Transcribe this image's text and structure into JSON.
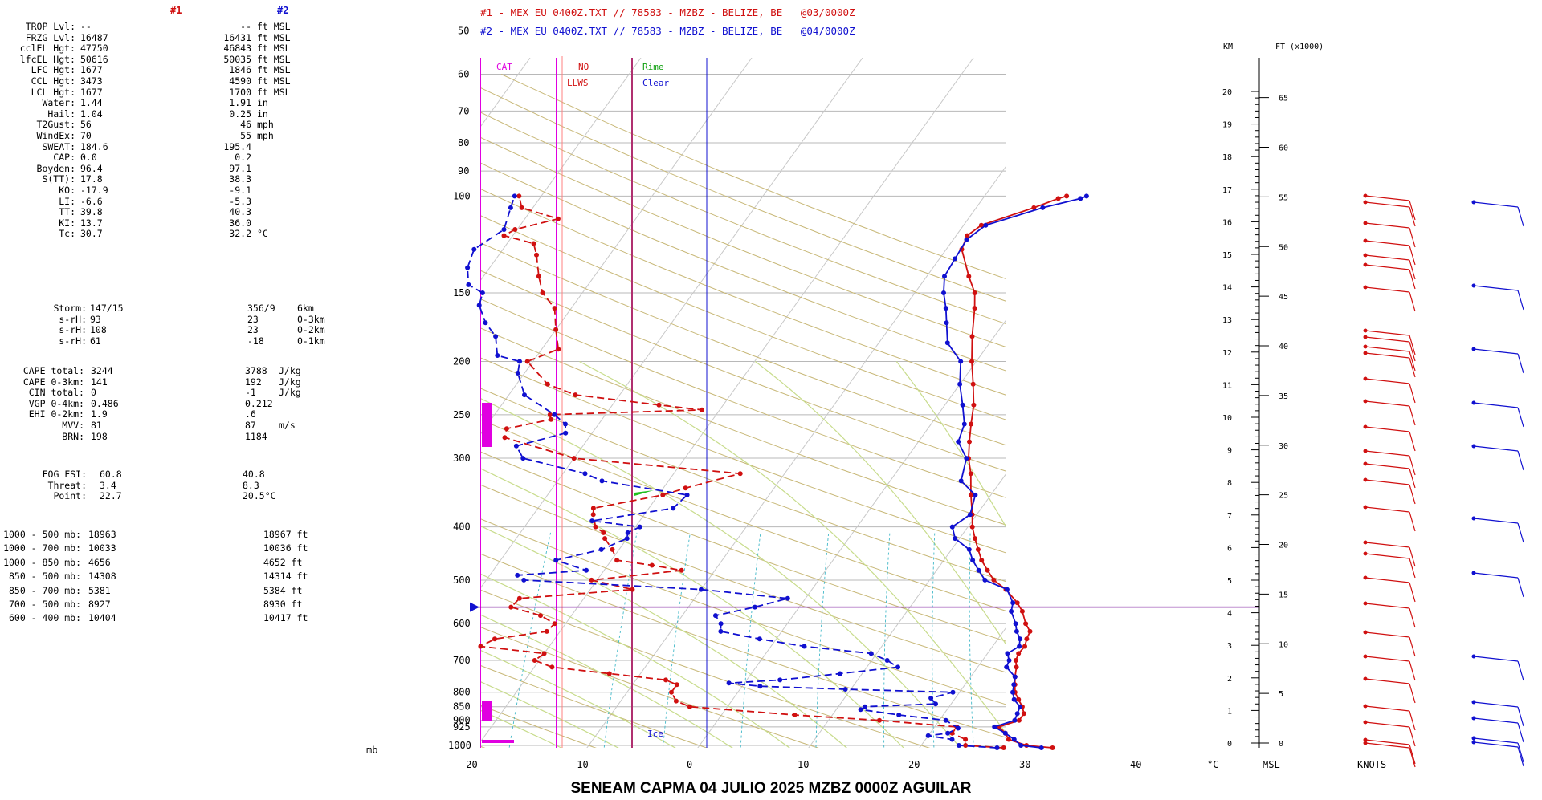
{
  "header": {
    "sounding1_label": "#1",
    "sounding2_label": "#2",
    "file1": "#1 - MEX EU 0400Z.TXT // 78583 - MZBZ - BELIZE, BE   @03/0000Z",
    "file2": "#2 - MEX EU 0400Z.TXT // 78583 - MZBZ - BELIZE, BE   @04/0000Z"
  },
  "indices": [
    {
      "label": "TROP Lvl:",
      "v1": "--",
      "v2": "--",
      "unit": "ft MSL"
    },
    {
      "label": "FRZG Lvl:",
      "v1": "16487",
      "v2": "16431",
      "unit": "ft MSL"
    },
    {
      "label": "cclEL Hgt:",
      "v1": "47750",
      "v2": "46843",
      "unit": "ft MSL"
    },
    {
      "label": "lfcEL Hgt:",
      "v1": "50616",
      "v2": "50035",
      "unit": "ft MSL"
    },
    {
      "label": "LFC Hgt:",
      "v1": "1677",
      "v2": "1846",
      "unit": "ft MSL"
    },
    {
      "label": "CCL Hgt:",
      "v1": "3473",
      "v2": "4590",
      "unit": "ft MSL"
    },
    {
      "label": "LCL Hgt:",
      "v1": "1677",
      "v2": "1700",
      "unit": "ft MSL"
    },
    {
      "label": "Water:",
      "v1": "1.44",
      "v2": "1.91",
      "unit": "in"
    },
    {
      "label": "Hail:",
      "v1": "1.04",
      "v2": "0.25",
      "unit": "in"
    },
    {
      "label": "T2Gust:",
      "v1": "56",
      "v2": "46",
      "unit": "mph"
    },
    {
      "label": "WindEx:",
      "v1": "70",
      "v2": "55",
      "unit": "mph"
    },
    {
      "label": "SWEAT:",
      "v1": "184.6",
      "v2": "195.4",
      "unit": ""
    },
    {
      "label": "CAP:",
      "v1": "0.0",
      "v2": "0.2",
      "unit": ""
    },
    {
      "label": "Boyden:",
      "v1": "96.4",
      "v2": "97.1",
      "unit": ""
    },
    {
      "label": "S(TT):",
      "v1": "17.8",
      "v2": "38.3",
      "unit": ""
    },
    {
      "label": "KO:",
      "v1": "-17.9",
      "v2": "-9.1",
      "unit": ""
    },
    {
      "label": "LI:",
      "v1": "-6.6",
      "v2": "-5.3",
      "unit": ""
    },
    {
      "label": "TT:",
      "v1": "39.8",
      "v2": "40.3",
      "unit": ""
    },
    {
      "label": "KI:",
      "v1": "13.7",
      "v2": "36.0",
      "unit": ""
    },
    {
      "label": "Tc:",
      "v1": "30.7",
      "v2": "32.2",
      "unit": "°C"
    }
  ],
  "storm": [
    {
      "label": "Storm:",
      "v1": "147/15",
      "v2": "356/9",
      "unit": "6km"
    },
    {
      "label": "s-rH:",
      "v1": "93",
      "v2": "23",
      "unit": "0-3km"
    },
    {
      "label": "s-rH:",
      "v1": "108",
      "v2": "23",
      "unit": "0-2km"
    },
    {
      "label": "s-rH:",
      "v1": "61",
      "v2": "-18",
      "unit": "0-1km"
    }
  ],
  "cape": [
    {
      "label": "CAPE total:",
      "v1": "3244",
      "v2": "3788",
      "unit": "J/kg"
    },
    {
      "label": "CAPE 0-3km:",
      "v1": "141",
      "v2": "192",
      "unit": "J/kg"
    },
    {
      "label": "CIN total:",
      "v1": "0",
      "v2": "-1",
      "unit": "J/kg"
    },
    {
      "label": "VGP 0-4km:",
      "v1": "0.486",
      "v2": "0.212",
      "unit": ""
    },
    {
      "label": "EHI 0-2km:",
      "v1": "1.9",
      "v2": ".6",
      "unit": ""
    },
    {
      "label": "MVV:",
      "v1": "81",
      "v2": "87",
      "unit": "m/s"
    },
    {
      "label": "BRN:",
      "v1": "198",
      "v2": "1184",
      "unit": ""
    }
  ],
  "fog": [
    {
      "label": "FOG FSI:",
      "v1": "60.8",
      "v2": "40.8",
      "unit": ""
    },
    {
      "label": "Threat:",
      "v1": "3.4",
      "v2": "8.3",
      "unit": ""
    },
    {
      "label": "Point:",
      "v1": "22.7",
      "v2": "20.5°C",
      "unit": ""
    }
  ],
  "thickness": [
    {
      "label": "1000 - 500 mb:",
      "v1": "18963",
      "v2": "18967 ft"
    },
    {
      "label": "1000 - 700 mb:",
      "v1": "10033",
      "v2": "10036 ft"
    },
    {
      "label": "1000 - 850 mb:",
      "v1": "4656",
      "v2": "4652 ft"
    },
    {
      "label": "850 - 500 mb:",
      "v1": "14308",
      "v2": "14314 ft"
    },
    {
      "label": "850 - 700 mb:",
      "v1": "5381",
      "v2": "5384 ft"
    },
    {
      "label": "700 - 500 mb:",
      "v1": "8927",
      "v2": "8930 ft"
    },
    {
      "label": "600 - 400 mb:",
      "v1": "10404",
      "v2": "10417 ft"
    }
  ],
  "title": "SENEAM  CAPMA  04 JULIO 2025   MZBZ   0000Z  AGUILAR",
  "colors": {
    "sounding1": "#d01010",
    "sounding2": "#1010d0",
    "isotherm": "#c8c8c8",
    "dry_adiabat": "#c8b878",
    "moist_adiabat": "#c8dc8c",
    "mixing_ratio": "#40b8c8",
    "hazard": "#e000e0"
  },
  "chart_data": {
    "type": "skew-t log-p sounding",
    "x_axis_label": "°C",
    "y_axis_label": "mb",
    "msl_label": "MSL",
    "knots_label": "KNOTS",
    "km_label": "KM",
    "ft_label": "FT (x1000)",
    "temp_ticks": [
      -20,
      -10,
      0,
      10,
      20,
      30,
      40
    ],
    "pressure_ticks": [
      50,
      60,
      70,
      80,
      90,
      100,
      150,
      200,
      250,
      300,
      400,
      500,
      600,
      700,
      800,
      850,
      900,
      925,
      1000
    ],
    "km_ticks": [
      0,
      1,
      2,
      3,
      4,
      5,
      6,
      7,
      8,
      9,
      10,
      11,
      12,
      13,
      14,
      15,
      16,
      17,
      18,
      19,
      20
    ],
    "ft_ticks": [
      0,
      5,
      10,
      15,
      20,
      25,
      30,
      35,
      40,
      45,
      50,
      55,
      60,
      65
    ],
    "hazard_labels": {
      "cat": "CAT",
      "no": "NO",
      "llws": "LLWS",
      "rime": "Rime",
      "clear": "Clear",
      "ice": "Ice"
    },
    "freezing_level_mb": 560,
    "series": [
      {
        "name": "#1",
        "temperature": [
          [
            1010,
            32.0
          ],
          [
            1000,
            29.5
          ],
          [
            975,
            27.5
          ],
          [
            950,
            26.8
          ],
          [
            925,
            25.8
          ],
          [
            900,
            27.2
          ],
          [
            875,
            27.2
          ],
          [
            850,
            26.6
          ],
          [
            825,
            25.8
          ],
          [
            800,
            25.0
          ],
          [
            775,
            24.5
          ],
          [
            750,
            24.0
          ],
          [
            720,
            23.5
          ],
          [
            700,
            23.0
          ],
          [
            680,
            22.8
          ],
          [
            660,
            22.9
          ],
          [
            640,
            22.6
          ],
          [
            620,
            22.4
          ],
          [
            600,
            21.5
          ],
          [
            570,
            20.4
          ],
          [
            550,
            19.4
          ],
          [
            520,
            17.5
          ],
          [
            500,
            15.8
          ],
          [
            480,
            14.6
          ],
          [
            460,
            13.4
          ],
          [
            440,
            12.4
          ],
          [
            420,
            11.4
          ],
          [
            400,
            10.4
          ],
          [
            380,
            9.6
          ],
          [
            350,
            8.2
          ],
          [
            320,
            6.8
          ],
          [
            300,
            5.6
          ],
          [
            280,
            4.6
          ],
          [
            260,
            3.6
          ],
          [
            240,
            2.6
          ],
          [
            220,
            1.2
          ],
          [
            200,
            -0.4
          ],
          [
            180,
            -2.0
          ],
          [
            160,
            -3.6
          ],
          [
            150,
            -4.6
          ],
          [
            140,
            -6.2
          ],
          [
            125,
            -8.6
          ],
          [
            118,
            -9.0
          ],
          [
            113,
            -8.4
          ],
          [
            105,
            -4.8
          ],
          [
            101,
            -3.2
          ],
          [
            100,
            -2.6
          ]
        ],
        "dewpoint": [
          [
            1010,
            27.6
          ],
          [
            1000,
            24.0
          ],
          [
            975,
            23.6
          ],
          [
            950,
            22.0
          ],
          [
            925,
            22.0
          ],
          [
            900,
            14.6
          ],
          [
            880,
            6.6
          ],
          [
            850,
            -3.4
          ],
          [
            830,
            -5.0
          ],
          [
            800,
            -6.0
          ],
          [
            775,
            -6.0
          ],
          [
            760,
            -7.3
          ],
          [
            740,
            -12.8
          ],
          [
            720,
            -18.4
          ],
          [
            700,
            -20.4
          ],
          [
            680,
            -20.0
          ],
          [
            660,
            -26.2
          ],
          [
            640,
            -25.4
          ],
          [
            620,
            -21.2
          ],
          [
            600,
            -21.0
          ],
          [
            580,
            -22.8
          ],
          [
            560,
            -26.0
          ],
          [
            540,
            -25.8
          ],
          [
            520,
            -16.2
          ],
          [
            500,
            -20.5
          ],
          [
            480,
            -13.0
          ],
          [
            470,
            -16.0
          ],
          [
            460,
            -19.5
          ],
          [
            440,
            -20.6
          ],
          [
            420,
            -22.0
          ],
          [
            410,
            -22.5
          ],
          [
            400,
            -23.6
          ],
          [
            380,
            -24.6
          ],
          [
            370,
            -25.0
          ],
          [
            350,
            -19.6
          ],
          [
            340,
            -18.0
          ],
          [
            320,
            -14.0
          ],
          [
            300,
            -30.0
          ],
          [
            275,
            -37.6
          ],
          [
            265,
            -38.0
          ],
          [
            255,
            -34.6
          ],
          [
            250,
            -35.0
          ],
          [
            245,
            -21.6
          ],
          [
            240,
            -25.8
          ],
          [
            230,
            -34.0
          ],
          [
            220,
            -37.2
          ],
          [
            200,
            -40.5
          ],
          [
            190,
            -38.5
          ],
          [
            175,
            -40.0
          ],
          [
            160,
            -41.5
          ],
          [
            150,
            -43.6
          ],
          [
            140,
            -45.0
          ],
          [
            128,
            -46.6
          ],
          [
            122,
            -47.6
          ],
          [
            118,
            -50.8
          ],
          [
            115,
            -50.2
          ],
          [
            110,
            -47.0
          ],
          [
            105,
            -51.0
          ],
          [
            100,
            -52.0
          ]
        ]
      },
      {
        "name": "#2",
        "temperature": [
          [
            1010,
            31.0
          ],
          [
            1000,
            29.0
          ],
          [
            975,
            28.0
          ],
          [
            950,
            26.8
          ],
          [
            925,
            25.4
          ],
          [
            900,
            26.8
          ],
          [
            875,
            26.6
          ],
          [
            850,
            26.4
          ],
          [
            825,
            25.4
          ],
          [
            800,
            24.8
          ],
          [
            775,
            24.4
          ],
          [
            750,
            24.0
          ],
          [
            720,
            22.6
          ],
          [
            700,
            22.4
          ],
          [
            680,
            21.8
          ],
          [
            660,
            22.4
          ],
          [
            640,
            22.0
          ],
          [
            620,
            21.2
          ],
          [
            600,
            20.6
          ],
          [
            570,
            19.4
          ],
          [
            550,
            19.0
          ],
          [
            520,
            17.6
          ],
          [
            500,
            15.0
          ],
          [
            480,
            13.8
          ],
          [
            460,
            12.6
          ],
          [
            440,
            11.6
          ],
          [
            420,
            9.6
          ],
          [
            400,
            8.6
          ],
          [
            380,
            9.4
          ],
          [
            350,
            8.6
          ],
          [
            330,
            6.4
          ],
          [
            300,
            5.4
          ],
          [
            280,
            3.6
          ],
          [
            260,
            3.0
          ],
          [
            240,
            1.6
          ],
          [
            220,
            0.0
          ],
          [
            200,
            -1.4
          ],
          [
            185,
            -3.8
          ],
          [
            170,
            -5.2
          ],
          [
            160,
            -6.2
          ],
          [
            150,
            -7.4
          ],
          [
            140,
            -8.4
          ],
          [
            130,
            -8.6
          ],
          [
            120,
            -8.8
          ],
          [
            113,
            -8.0
          ],
          [
            105,
            -4.0
          ],
          [
            101,
            -1.2
          ],
          [
            100,
            -0.8
          ]
        ],
        "dewpoint": [
          [
            1010,
            27.0
          ],
          [
            1000,
            23.4
          ],
          [
            975,
            22.4
          ],
          [
            960,
            20.0
          ],
          [
            950,
            21.6
          ],
          [
            930,
            22.2
          ],
          [
            900,
            20.6
          ],
          [
            880,
            16.0
          ],
          [
            860,
            12.2
          ],
          [
            850,
            12.4
          ],
          [
            840,
            18.6
          ],
          [
            820,
            17.8
          ],
          [
            800,
            19.4
          ],
          [
            790,
            9.5
          ],
          [
            780,
            1.6
          ],
          [
            770,
            -1.4
          ],
          [
            760,
            3.0
          ],
          [
            740,
            8.0
          ],
          [
            720,
            12.8
          ],
          [
            700,
            11.4
          ],
          [
            680,
            9.5
          ],
          [
            660,
            3.0
          ],
          [
            640,
            -1.5
          ],
          [
            620,
            -5.5
          ],
          [
            600,
            -6.0
          ],
          [
            580,
            -7.0
          ],
          [
            560,
            -4.0
          ],
          [
            540,
            -1.6
          ],
          [
            520,
            -10.0
          ],
          [
            500,
            -26.6
          ],
          [
            490,
            -27.5
          ],
          [
            480,
            -21.6
          ],
          [
            460,
            -25.0
          ],
          [
            440,
            -21.6
          ],
          [
            420,
            -20.0
          ],
          [
            410,
            -20.3
          ],
          [
            400,
            -19.6
          ],
          [
            390,
            -24.3
          ],
          [
            370,
            -17.8
          ],
          [
            350,
            -17.4
          ],
          [
            330,
            -26.0
          ],
          [
            320,
            -28.0
          ],
          [
            300,
            -34.6
          ],
          [
            285,
            -36.0
          ],
          [
            270,
            -32.4
          ],
          [
            260,
            -33.0
          ],
          [
            250,
            -34.6
          ],
          [
            230,
            -38.6
          ],
          [
            210,
            -40.6
          ],
          [
            200,
            -41.2
          ],
          [
            195,
            -43.6
          ],
          [
            180,
            -45.0
          ],
          [
            170,
            -46.8
          ],
          [
            158,
            -48.5
          ],
          [
            150,
            -49.0
          ],
          [
            145,
            -50.8
          ],
          [
            135,
            -52.0
          ],
          [
            125,
            -52.6
          ],
          [
            115,
            -51.2
          ],
          [
            105,
            -52.0
          ],
          [
            100,
            -52.4
          ]
        ]
      }
    ]
  }
}
